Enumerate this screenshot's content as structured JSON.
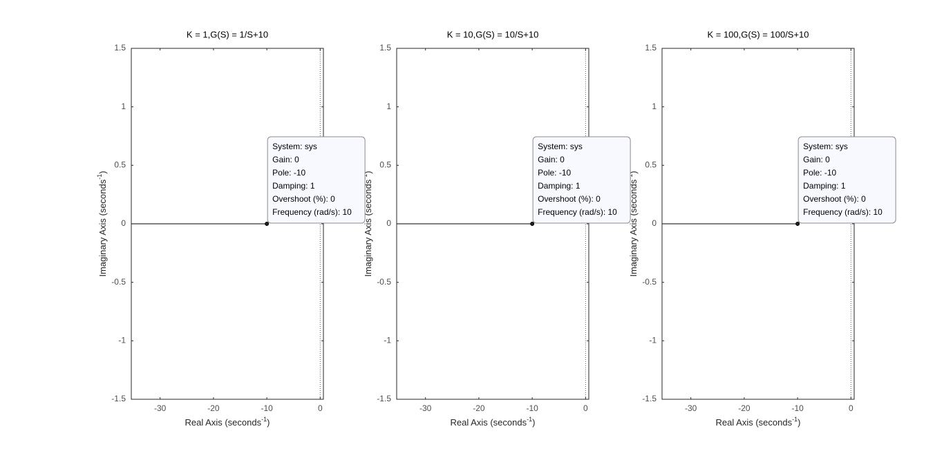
{
  "chart_data": [
    {
      "type": "locus",
      "title": "K = 1,G(S) = 1/S+10",
      "xlabel": [
        "Real Axis (seconds",
        "-1",
        ")"
      ],
      "ylabel": [
        "Imaginary Axis (seconds",
        "-1",
        ")"
      ],
      "x": [
        -35.4,
        -10
      ],
      "values": [
        0,
        0
      ],
      "color": "#000000",
      "pole": {
        "x": -10,
        "y": 0
      },
      "xlim": [
        -35.4,
        0.6
      ],
      "xticks": [
        -30,
        -20,
        -10,
        0
      ],
      "ylim": [
        -1.5,
        1.5
      ],
      "yticks": [
        -1.5,
        -1,
        -0.5,
        0,
        0.5,
        1,
        1.5
      ],
      "zero_line": true,
      "datatip": [
        "System: sys",
        "Gain: 0",
        "Pole: -10",
        "Damping: 1",
        "Overshoot (%): 0",
        "Frequency (rad/s): 10"
      ]
    },
    {
      "type": "locus",
      "title": "K = 10,G(S) = 10/S+10",
      "xlabel": [
        "Real Axis (seconds",
        "-1",
        ")"
      ],
      "ylabel": [
        "Imaginary Axis (seconds",
        "-1",
        ")"
      ],
      "x": [
        -35.4,
        -10
      ],
      "values": [
        0,
        0
      ],
      "color": "#000000",
      "pole": {
        "x": -10,
        "y": 0
      },
      "xlim": [
        -35.4,
        0.6
      ],
      "xticks": [
        -30,
        -20,
        -10,
        0
      ],
      "ylim": [
        -1.5,
        1.5
      ],
      "yticks": [
        -1.5,
        -1,
        -0.5,
        0,
        0.5,
        1,
        1.5
      ],
      "zero_line": true,
      "datatip": [
        "System: sys",
        "Gain: 0",
        "Pole: -10",
        "Damping: 1",
        "Overshoot (%): 0",
        "Frequency (rad/s): 10"
      ]
    },
    {
      "type": "locus",
      "title": "K = 100,G(S) = 100/S+10",
      "xlabel": [
        "Real Axis (seconds",
        "-1",
        ")"
      ],
      "ylabel": [
        "Imaginary Axis (seconds",
        "-1",
        ")"
      ],
      "x": [
        -35.4,
        -10
      ],
      "values": [
        0,
        0
      ],
      "color": "#000000",
      "pole": {
        "x": -10,
        "y": 0
      },
      "xlim": [
        -35.4,
        0.6
      ],
      "xticks": [
        -30,
        -20,
        -10,
        0
      ],
      "ylim": [
        -1.5,
        1.5
      ],
      "yticks": [
        -1.5,
        -1,
        -0.5,
        0,
        0.5,
        1,
        1.5
      ],
      "zero_line": true,
      "datatip": [
        "System: sys",
        "Gain: 0",
        "Pole: -10",
        "Damping: 1",
        "Overshoot (%): 0",
        "Frequency (rad/s): 10"
      ]
    }
  ]
}
